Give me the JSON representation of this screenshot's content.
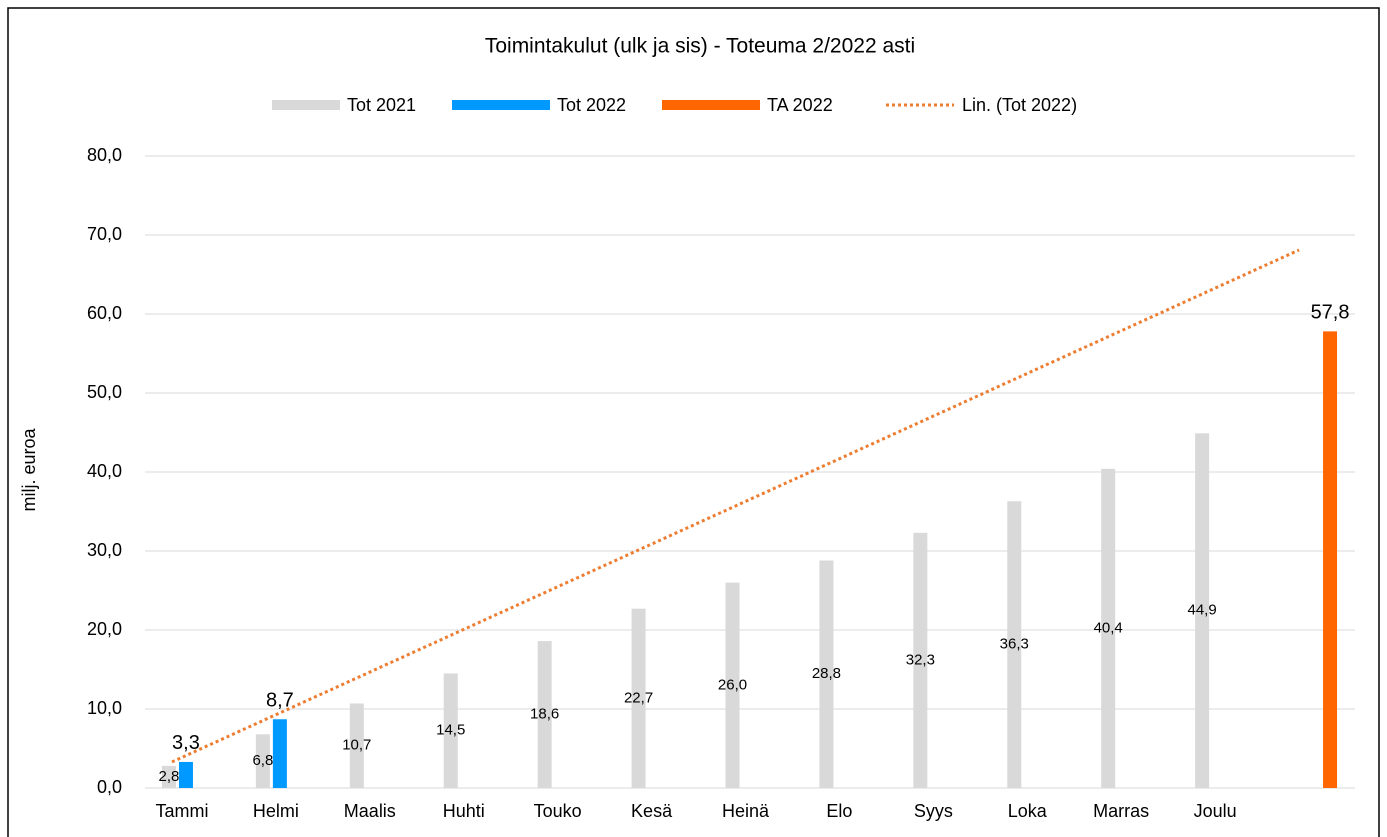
{
  "chart_data": {
    "type": "bar",
    "title": "Toimintakulut (ulk ja sis) - Toteuma 2/2022 asti",
    "y_label": "milj. euroa",
    "categories": [
      "Tammi",
      "Helmi",
      "Maalis",
      "Huhti",
      "Touko",
      "Kesä",
      "Heinä",
      "Elo",
      "Syys",
      "Loka",
      "Marras",
      "Joulu",
      null
    ],
    "series": [
      {
        "name": "Tot 2021",
        "color": "#d9d9d9",
        "values": [
          2.8,
          6.8,
          10.7,
          14.5,
          18.6,
          22.7,
          26.0,
          28.8,
          32.3,
          36.3,
          40.4,
          44.9,
          null
        ],
        "value_labels": [
          "2,8",
          "6,8",
          "10,7",
          "14,5",
          "18,6",
          "22,7",
          "26,0",
          "28,8",
          "32,3",
          "36,3",
          "40,4",
          "44,9",
          null
        ]
      },
      {
        "name": "Tot 2022",
        "color": "#0099ff",
        "values": [
          3.3,
          8.7,
          null,
          null,
          null,
          null,
          null,
          null,
          null,
          null,
          null,
          null,
          null
        ],
        "value_labels": [
          "3,3",
          "8,7",
          null,
          null,
          null,
          null,
          null,
          null,
          null,
          null,
          null,
          null,
          null
        ]
      },
      {
        "name": "TA 2022",
        "color": "#ff6600",
        "values": [
          null,
          null,
          null,
          null,
          null,
          null,
          null,
          null,
          null,
          null,
          null,
          null,
          57.8
        ],
        "value_labels": [
          null,
          null,
          null,
          null,
          null,
          null,
          null,
          null,
          null,
          null,
          null,
          null,
          "57,8"
        ]
      }
    ],
    "trendline": {
      "name": "Lin. (Tot 2022)",
      "color": "#ed7d31",
      "values": [
        3.3,
        8.7,
        14.1,
        19.5,
        24.9,
        30.3,
        35.7,
        41.1,
        46.5,
        51.9,
        57.3,
        62.7,
        68.1
      ]
    },
    "ylim": [
      0,
      80
    ],
    "yticks": [
      {
        "value": 0,
        "label": "0,0"
      },
      {
        "value": 10,
        "label": "10,0"
      },
      {
        "value": 20,
        "label": "20,0"
      },
      {
        "value": 30,
        "label": "30,0"
      },
      {
        "value": 40,
        "label": "40,0"
      },
      {
        "value": 50,
        "label": "50,0"
      },
      {
        "value": 60,
        "label": "60,0"
      },
      {
        "value": 70,
        "label": "70,0"
      },
      {
        "value": 80,
        "label": "80,0"
      }
    ],
    "grid": true
  }
}
